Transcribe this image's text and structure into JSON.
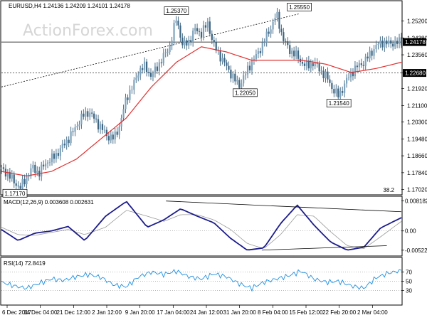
{
  "header": {
    "symbol": "EURUSD,H4",
    "ohlc": "1.24136 1.24209 1.24101 1.24178",
    "watermark": "ActionForex.com"
  },
  "chart_data": [
    {
      "type": "candlestick",
      "title": "EURUSD,H4 1.24136 1.24209 1.24101 1.24178",
      "y_ticks": [
        "1.25200",
        "1.24380",
        "1.23560",
        "1.22680",
        "1.21920",
        "1.21100",
        "1.20300",
        "1.19480",
        "1.18660",
        "1.17840",
        "1.17020"
      ],
      "ylim": [
        1.168,
        1.2615
      ],
      "x_ticks": [
        "6 Dec 2017",
        "14 Dec 04:00",
        "21 Dec 12:00",
        "2 Jan 12:00",
        "9 Jan 20:00",
        "17 Jan 04:00",
        "24 Jan 12:00",
        "31 Jan 20:00",
        "8 Feb 04:00",
        "15 Feb 12:00",
        "22 Feb 20:00",
        "2 Mar 04:00"
      ],
      "price_path": {
        "x": [
          0,
          3,
          6,
          9,
          12,
          15,
          18,
          21,
          24,
          27,
          30,
          33,
          36,
          39,
          42,
          45,
          48,
          51,
          54,
          57,
          60,
          63,
          66,
          69,
          72,
          75,
          78,
          81,
          84,
          87,
          90,
          93,
          96,
          99,
          102,
          105,
          108,
          111,
          114,
          117,
          120,
          123,
          126,
          129,
          132,
          135,
          138,
          141,
          144,
          147,
          150,
          153,
          156,
          159,
          162,
          165,
          168,
          171,
          174,
          177,
          180,
          183,
          186,
          189,
          192
        ],
        "close": [
          1.18,
          1.178,
          1.174,
          1.171,
          1.176,
          1.181,
          1.178,
          1.183,
          1.185,
          1.188,
          1.192,
          1.196,
          1.201,
          1.206,
          1.208,
          1.204,
          1.2,
          1.196,
          1.195,
          1.202,
          1.215,
          1.22,
          1.228,
          1.23,
          1.225,
          1.23,
          1.235,
          1.24,
          1.2537,
          1.24,
          1.242,
          1.248,
          1.246,
          1.251,
          1.24,
          1.235,
          1.23,
          1.225,
          1.2205,
          1.226,
          1.232,
          1.236,
          1.242,
          1.248,
          1.2555,
          1.244,
          1.238,
          1.236,
          1.232,
          1.23,
          1.232,
          1.228,
          1.225,
          1.219,
          1.2154,
          1.222,
          1.227,
          1.23,
          1.232,
          1.236,
          1.24,
          1.2418,
          1.241,
          1.2415,
          1.2418
        ]
      },
      "ma_path": {
        "x": [
          0,
          12,
          24,
          36,
          48,
          60,
          72,
          84,
          96,
          108,
          120,
          132,
          144,
          156,
          168,
          180,
          192
        ],
        "values": [
          1.179,
          1.1768,
          1.179,
          1.185,
          1.195,
          1.205,
          1.22,
          1.232,
          1.2395,
          1.237,
          1.233,
          1.233,
          1.233,
          1.231,
          1.227,
          1.229,
          1.232
        ]
      },
      "trend_line": {
        "from": [
          0,
          1.22
        ],
        "to": [
          143,
          1.2555
        ]
      },
      "h_lines": [
        {
          "level": 1.2418,
          "label": "1.24178",
          "style": "solid"
        },
        {
          "level": 1.2268,
          "label": "1.22680",
          "style": "dashed"
        }
      ],
      "annotations": [
        {
          "label": "1.25370",
          "x": 84,
          "y": 1.2537
        },
        {
          "label": "1.25550",
          "x": 143,
          "y": 1.2555
        },
        {
          "label": "1.22050",
          "x": 117,
          "y": 1.2205
        },
        {
          "label": "1.21540",
          "x": 162,
          "y": 1.2154
        },
        {
          "label": "1.17170",
          "x": 3,
          "y": 1.1717
        }
      ],
      "corner_value": "38.2"
    },
    {
      "type": "line",
      "title": "MACD(12,26,9) 0.003608 0.002631",
      "y_ticks": [
        "0.008182",
        "0.00",
        "-0.005223"
      ],
      "ylim": [
        -0.0066,
        0.0092
      ],
      "series": [
        {
          "name": "MACD",
          "x": [
            0,
            8,
            16,
            24,
            32,
            40,
            50,
            60,
            70,
            78,
            86,
            94,
            102,
            110,
            118,
            126,
            134,
            142,
            150,
            158,
            166,
            174,
            182,
            192
          ],
          "values": [
            0.0004,
            -0.0026,
            -0.0006,
            0.0,
            0.0012,
            -0.0026,
            0.004,
            0.008,
            0.001,
            0.003,
            0.006,
            0.004,
            0.0022,
            -0.002,
            -0.0052,
            -0.0046,
            0.002,
            0.007,
            0.0016,
            -0.003,
            -0.0052,
            -0.0044,
            0.0008,
            0.0036
          ]
        },
        {
          "name": "Signal",
          "x": [
            0,
            8,
            16,
            24,
            32,
            40,
            50,
            60,
            70,
            78,
            86,
            94,
            102,
            110,
            118,
            126,
            134,
            142,
            150,
            158,
            166,
            174,
            182,
            192
          ],
          "values": [
            0.001,
            -0.001,
            -0.0012,
            -0.0004,
            0.0004,
            -0.001,
            0.001,
            0.0056,
            0.004,
            0.0026,
            0.0044,
            0.0044,
            0.003,
            0.0004,
            -0.0034,
            -0.0048,
            -0.001,
            0.0044,
            0.004,
            -0.0002,
            -0.004,
            -0.0048,
            -0.0016,
            0.0026
          ]
        }
      ],
      "trend_lines": [
        {
          "from": [
            79,
            0.0081
          ],
          "to": [
            192,
            0.0052
          ]
        },
        {
          "from": [
            125,
            -0.0052
          ],
          "to": [
            185,
            -0.004
          ]
        }
      ]
    },
    {
      "type": "line",
      "title": "RSI(14) 72.8419",
      "y_ticks": [
        "70",
        "50",
        "30"
      ],
      "ylim": [
        0,
        100
      ],
      "series": [
        {
          "name": "RSI",
          "x": [
            0,
            6,
            12,
            18,
            24,
            30,
            36,
            42,
            48,
            54,
            60,
            66,
            72,
            78,
            84,
            90,
            96,
            102,
            108,
            114,
            120,
            126,
            132,
            138,
            144,
            150,
            156,
            162,
            168,
            174,
            180,
            186,
            192
          ],
          "values": [
            48,
            40,
            35,
            45,
            55,
            52,
            60,
            65,
            58,
            42,
            38,
            60,
            70,
            65,
            72,
            60,
            55,
            66,
            60,
            45,
            35,
            48,
            55,
            62,
            72,
            55,
            48,
            50,
            40,
            35,
            58,
            68,
            73
          ]
        }
      ]
    }
  ]
}
